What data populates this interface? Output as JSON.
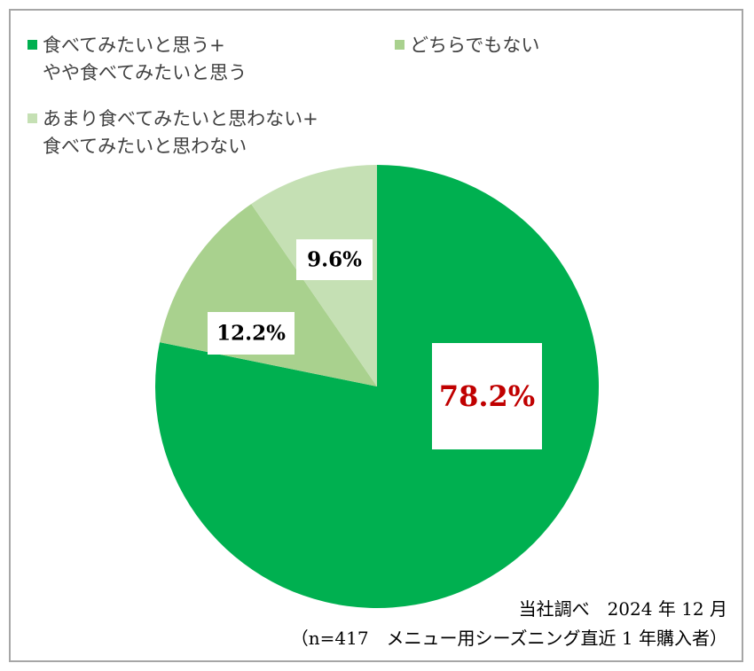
{
  "colors": {
    "series0": "#00b050",
    "series1": "#a9d18e",
    "series2": "#c5e0b4",
    "highlight_label": "#c00000"
  },
  "chart_data": {
    "type": "pie",
    "start": "12 o'clock, clockwise",
    "legend_position": "top",
    "slices": [
      {
        "label_lines": [
          "食べてみたいと思う+",
          "やや食べてみたいと思う"
        ],
        "value": 78.2,
        "value_label": "78.2%"
      },
      {
        "label_lines": [
          "どちらでもない"
        ],
        "value": 12.2,
        "value_label": "12.2%"
      },
      {
        "label_lines": [
          "あまり食べてみたいと思わない+",
          "食べてみたいと思わない"
        ],
        "value": 9.6,
        "value_label": "9.6%"
      }
    ]
  },
  "notes": {
    "source": "当社調べ　2024 年 12 月",
    "sample": "（n=417　メニュー用シーズニング直近 1 年購入者）"
  }
}
